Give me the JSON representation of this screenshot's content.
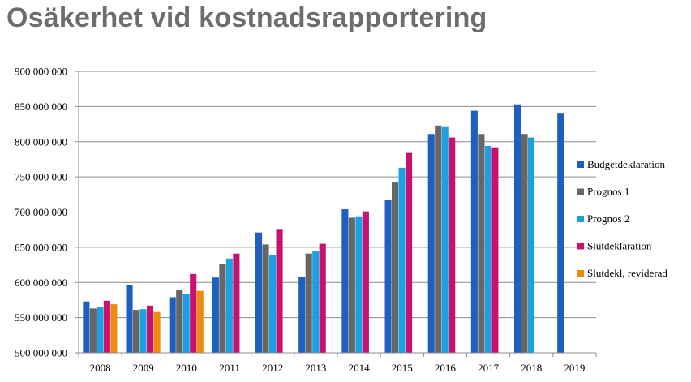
{
  "chart_data": {
    "type": "bar",
    "title": "Osäkerhet vid kostnadsrapportering",
    "xlabel": "",
    "ylabel": "",
    "ylim": [
      500000000,
      900000000
    ],
    "yticks": [
      500000000,
      550000000,
      600000000,
      650000000,
      700000000,
      750000000,
      800000000,
      850000000,
      900000000
    ],
    "ytick_labels": [
      "500 000 000",
      "550 000 000",
      "600 000 000",
      "650 000 000",
      "700 000 000",
      "750 000 000",
      "800 000 000",
      "850 000 000",
      "900 000 000"
    ],
    "grid": "horizontal",
    "legend_position": "right",
    "categories": [
      "2008",
      "2009",
      "2010",
      "2011",
      "2012",
      "2013",
      "2014",
      "2015",
      "2016",
      "2017",
      "2018",
      "2019"
    ],
    "series": [
      {
        "name": "Budgetdeklaration",
        "color": "#1f5fc0",
        "values": [
          573000000,
          596000000,
          579000000,
          607000000,
          671000000,
          608000000,
          704000000,
          717000000,
          811000000,
          844000000,
          853000000,
          841000000
        ]
      },
      {
        "name": "Prognos 1",
        "color": "#666666",
        "values": [
          563000000,
          561000000,
          589000000,
          626000000,
          654000000,
          641000000,
          692000000,
          742000000,
          823000000,
          811000000,
          811000000,
          null
        ]
      },
      {
        "name": "Prognos 2",
        "color": "#1ba1e2",
        "values": [
          565000000,
          562000000,
          583000000,
          634000000,
          639000000,
          644000000,
          694000000,
          763000000,
          822000000,
          794000000,
          806000000,
          null
        ]
      },
      {
        "name": "Slutdeklaration",
        "color": "#c8106e",
        "values": [
          574000000,
          567000000,
          612000000,
          641000000,
          676000000,
          655000000,
          701000000,
          784000000,
          806000000,
          792000000,
          null,
          null
        ]
      },
      {
        "name": "Slutdekl, reviderad",
        "color": "#ee8a0e",
        "values": [
          569000000,
          558000000,
          588000000,
          null,
          null,
          null,
          null,
          null,
          null,
          null,
          null,
          null
        ]
      }
    ]
  }
}
